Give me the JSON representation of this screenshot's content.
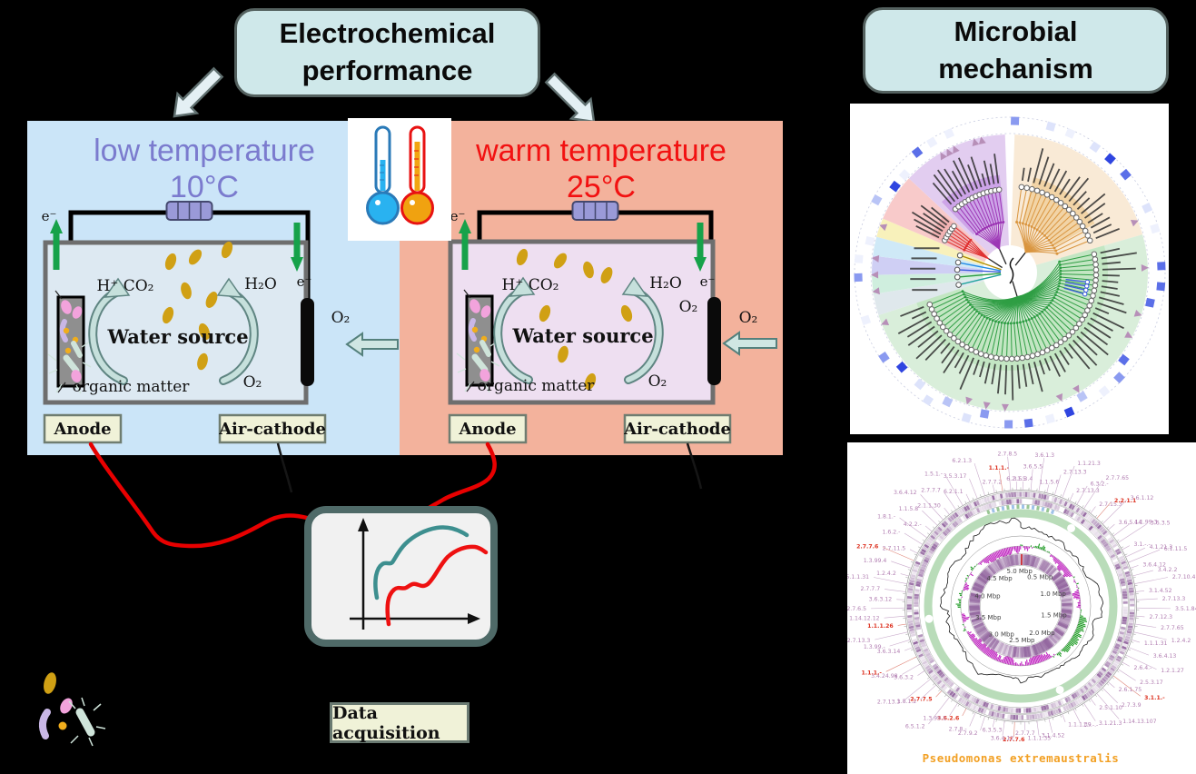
{
  "colors": {
    "background": "#000000",
    "title_box_bg": "#cfe8ea",
    "low_panel_bg": "#cbe5f8",
    "warm_panel_bg": "#f3b29c",
    "low_title": "#7b7bce",
    "warm_title": "#f21111",
    "low_chamber": "#dde9f2",
    "warm_chamber": "#eedff1",
    "electron_arrow_green": "#16a24a",
    "gold_particle": "#d0a014",
    "label_box_bg": "#f0f2d8",
    "wire_red": "#e80000",
    "curve_teal": "#3d8f8f",
    "curve_red": "#ee1111",
    "genome_caption_orange": "#f2a024"
  },
  "header": {
    "electro_line1": "Electrochemical",
    "electro_line2": "performance",
    "microbial_line1": "Microbial",
    "microbial_line2": "mechanism"
  },
  "panels": {
    "low": {
      "title": "low temperature",
      "temp": "10°C"
    },
    "warm": {
      "title": "warm temperature",
      "temp": "25°C"
    }
  },
  "mfc": {
    "electron": "e⁻",
    "h_plus_co2": "H⁺  CO₂",
    "h2o": "H₂O",
    "water_source": "Water source",
    "organic_matter": "organic matter",
    "o2": "O₂",
    "anode_label": "Anode",
    "cathode_label": "Air-cathode"
  },
  "device": {
    "label": "Data acquisition"
  },
  "tree": {
    "sector_colors": [
      "#f9ead6",
      "#d9eeda",
      "#dfe8ec",
      "#cfeede",
      "#cfcff4",
      "#cfe9f7",
      "#f8f1bb",
      "#f8caca",
      "#e2cdf0"
    ],
    "branch_colors": {
      "orange": "#d9953f",
      "green": "#2f9e44",
      "purple": "#9c36b5",
      "red": "#e03131",
      "blue": "#3b5bdb"
    }
  },
  "genome": {
    "caption": "Pseudomonas extremaustralis",
    "mbp_labels": [
      "0.5 Mbp",
      "1.0 Mbp",
      "1.5 Mbp",
      "2.0 Mbp",
      "2.5 Mbp",
      "3.0 Mbp",
      "3.5 Mbp",
      "4.0 Mbp",
      "4.5 Mbp",
      "5.0 Mbp"
    ],
    "ec_labels": [
      {
        "t": "3.5.3.4",
        "a": 1
      },
      {
        "t": "3.6.5.5",
        "a": 5
      },
      {
        "t": "3.6.1.3",
        "a": 9
      },
      {
        "t": "1.1.5.6",
        "a": 13
      },
      {
        "t": "2.7.13.3",
        "a": 17
      },
      {
        "t": "1.1.21.3",
        "a": 21
      },
      {
        "t": "2.7.13.3",
        "a": 25
      },
      {
        "t": "6.3.2.-",
        "a": 29
      },
      {
        "t": "2.7.7.65",
        "a": 33
      },
      {
        "t": "2.7.15.3",
        "a": 37
      },
      {
        "t": "2.2.1.1",
        "a": 41,
        "r": true
      },
      {
        "t": "3.6.1.12",
        "a": 45
      },
      {
        "t": "3.6.5.14",
        "a": 49
      },
      {
        "t": "4.1.99.3",
        "a": 53
      },
      {
        "t": "3.6.3.5",
        "a": 57
      },
      {
        "t": "3.1.-.-",
        "a": 61
      },
      {
        "t": "4.1.21.3",
        "a": 65
      },
      {
        "t": "6.1.11.5",
        "a": 68
      },
      {
        "t": "3.6.4.12",
        "a": 71
      },
      {
        "t": "3.4.2.2",
        "a": 75
      },
      {
        "t": "2.7.10.4",
        "a": 79
      },
      {
        "t": "3.1.4.52",
        "a": 83
      },
      {
        "t": "2.7.13.3",
        "a": 87
      },
      {
        "t": "3.5.1.84",
        "a": 91
      },
      {
        "t": "2.7.12.3",
        "a": 95
      },
      {
        "t": "2.7.7.65",
        "a": 99
      },
      {
        "t": "1.2.4.2",
        "a": 103
      },
      {
        "t": "1.1.1.31",
        "a": 107
      },
      {
        "t": "3.6.4.13",
        "a": 111
      },
      {
        "t": "1.2.1.27",
        "a": 115
      },
      {
        "t": "2.6.4.-",
        "a": 119
      },
      {
        "t": "2.5.3.17",
        "a": 123
      },
      {
        "t": "3.1.1.-",
        "a": 127,
        "r": true
      },
      {
        "t": "2.6.1.75",
        "a": 131
      },
      {
        "t": "2.7.3.9",
        "a": 135
      },
      {
        "t": "1.14.13.107",
        "a": 139
      },
      {
        "t": "2.5.1.10",
        "a": 143
      },
      {
        "t": "3.1.21.3",
        "a": 147
      },
      {
        "t": "1.-.-.-",
        "a": 153
      },
      {
        "t": "1.1.1.39",
        "a": 159
      },
      {
        "t": "3.1.4.52",
        "a": 166
      },
      {
        "t": "1.1.1.35",
        "a": 172
      },
      {
        "t": "2.7.7.7",
        "a": 178
      },
      {
        "t": "2.7.7.6",
        "a": 183,
        "r": true
      },
      {
        "t": "3.6.4.12",
        "a": 188
      },
      {
        "t": "6.3.5.3",
        "a": 193
      },
      {
        "t": "2.7.9.2",
        "a": 198
      },
      {
        "t": "2.7.8.-",
        "a": 203
      },
      {
        "t": "3.6.2.6",
        "a": 208,
        "r": true
      },
      {
        "t": "1.3.99.1",
        "a": 213
      },
      {
        "t": "6.5.1.2",
        "a": 218
      },
      {
        "t": "2.7.7.5",
        "a": 223,
        "r": true
      },
      {
        "t": "1.8.1.2",
        "a": 227
      },
      {
        "t": "2.7.13.3",
        "a": 231
      },
      {
        "t": "3.6.3.2",
        "a": 236
      },
      {
        "t": "3.4.24.98",
        "a": 240
      },
      {
        "t": "1.1.1.-",
        "a": 244,
        "r": true
      },
      {
        "t": "3.6.3.14",
        "a": 249
      },
      {
        "t": "1.3.99.-",
        "a": 253
      },
      {
        "t": "2.7.13.3",
        "a": 257
      },
      {
        "t": "1.1.1.26",
        "a": 261,
        "r": true
      },
      {
        "t": "1.14.12.12",
        "a": 265
      },
      {
        "t": "2.7.6.5",
        "a": 269
      },
      {
        "t": "3.6.3.12",
        "a": 273
      },
      {
        "t": "2.7.7.7",
        "a": 277
      },
      {
        "t": "5.1.1.31",
        "a": 281
      },
      {
        "t": "1.2.4.2",
        "a": 285
      },
      {
        "t": "1.3.99.4",
        "a": 289
      },
      {
        "t": "2.7.7.6",
        "a": 293,
        "r": true
      },
      {
        "t": "2.7.11.5",
        "a": 297
      },
      {
        "t": "1.6.2.-",
        "a": 302
      },
      {
        "t": "1.8.1.-",
        "a": 306
      },
      {
        "t": "4.2.2.-",
        "a": 310
      },
      {
        "t": "1.1.5.8",
        "a": 314
      },
      {
        "t": "3.6.4.12",
        "a": 318
      },
      {
        "t": "2.1.1.30",
        "a": 322
      },
      {
        "t": "2.7.7.7",
        "a": 326
      },
      {
        "t": "1.5.1.-",
        "a": 330
      },
      {
        "t": "6.2.1.1",
        "a": 334
      },
      {
        "t": "3.5.3.17",
        "a": 338
      },
      {
        "t": "6.2.1.3",
        "a": 342
      },
      {
        "t": "2.7.7.2",
        "a": 347
      },
      {
        "t": "1.1.1.-",
        "a": 351,
        "r": true
      },
      {
        "t": "2.7.8.5",
        "a": 355
      },
      {
        "t": "6.2.1.5",
        "a": 358
      }
    ]
  }
}
